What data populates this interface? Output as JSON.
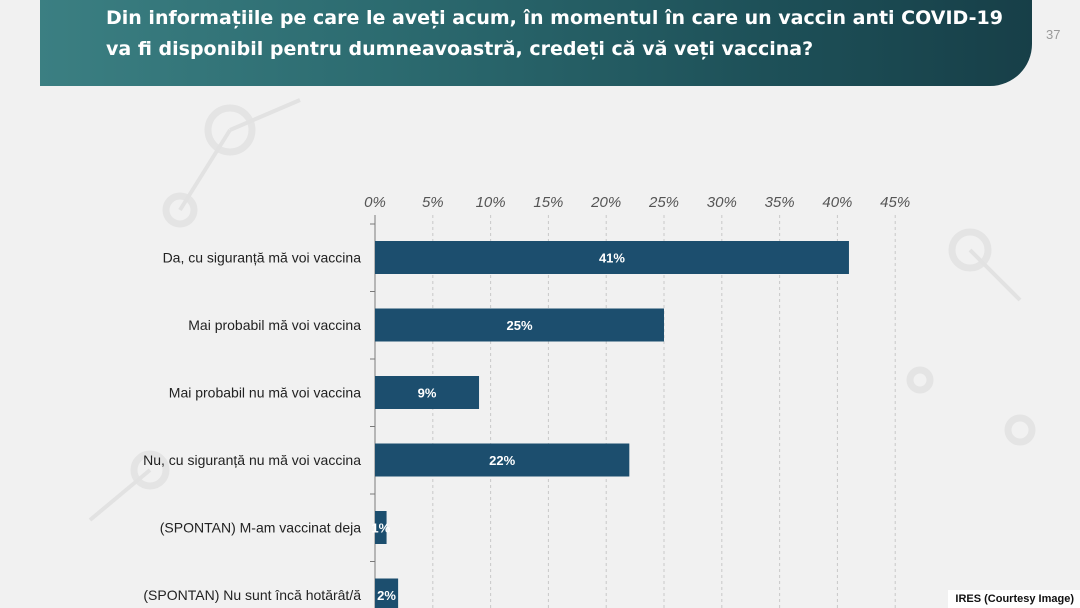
{
  "slide": {
    "title": "Din informațiile pe care le aveți acum, în momentul în care un vaccin anti COVID-19 va fi disponibil pentru dumneavoastră, credeți că vă veți vaccina?",
    "page_number": "37",
    "credit": "IRES (Courtesy Image)"
  },
  "colors": {
    "bar": "#1c4e6e",
    "header_start": "#3b7f82",
    "header_end": "#173f48",
    "background": "#f1f1f1",
    "value_label": "#ffffff"
  },
  "chart_data": {
    "type": "bar",
    "orientation": "horizontal",
    "categories": [
      "Da, cu siguranță mă voi vaccina",
      "Mai probabil mă voi vaccina",
      "Mai probabil nu mă voi vaccina",
      "Nu, cu siguranță nu mă voi vaccina",
      "(SPONTAN) M-am vaccinat deja",
      "(SPONTAN) Nu sunt încă hotărât/ă"
    ],
    "values": [
      41,
      25,
      9,
      22,
      1,
      2
    ],
    "value_labels": [
      "41%",
      "25%",
      "9%",
      "22%",
      "1%",
      "2%"
    ],
    "xlim": [
      0,
      45
    ],
    "xticks": [
      0,
      5,
      10,
      15,
      20,
      25,
      30,
      35,
      40,
      45
    ],
    "xtick_labels": [
      "0%",
      "5%",
      "10%",
      "15%",
      "20%",
      "25%",
      "30%",
      "35%",
      "40%",
      "45%"
    ],
    "axis_position": "top",
    "grid": true,
    "grid_style": "dashed vertical"
  }
}
